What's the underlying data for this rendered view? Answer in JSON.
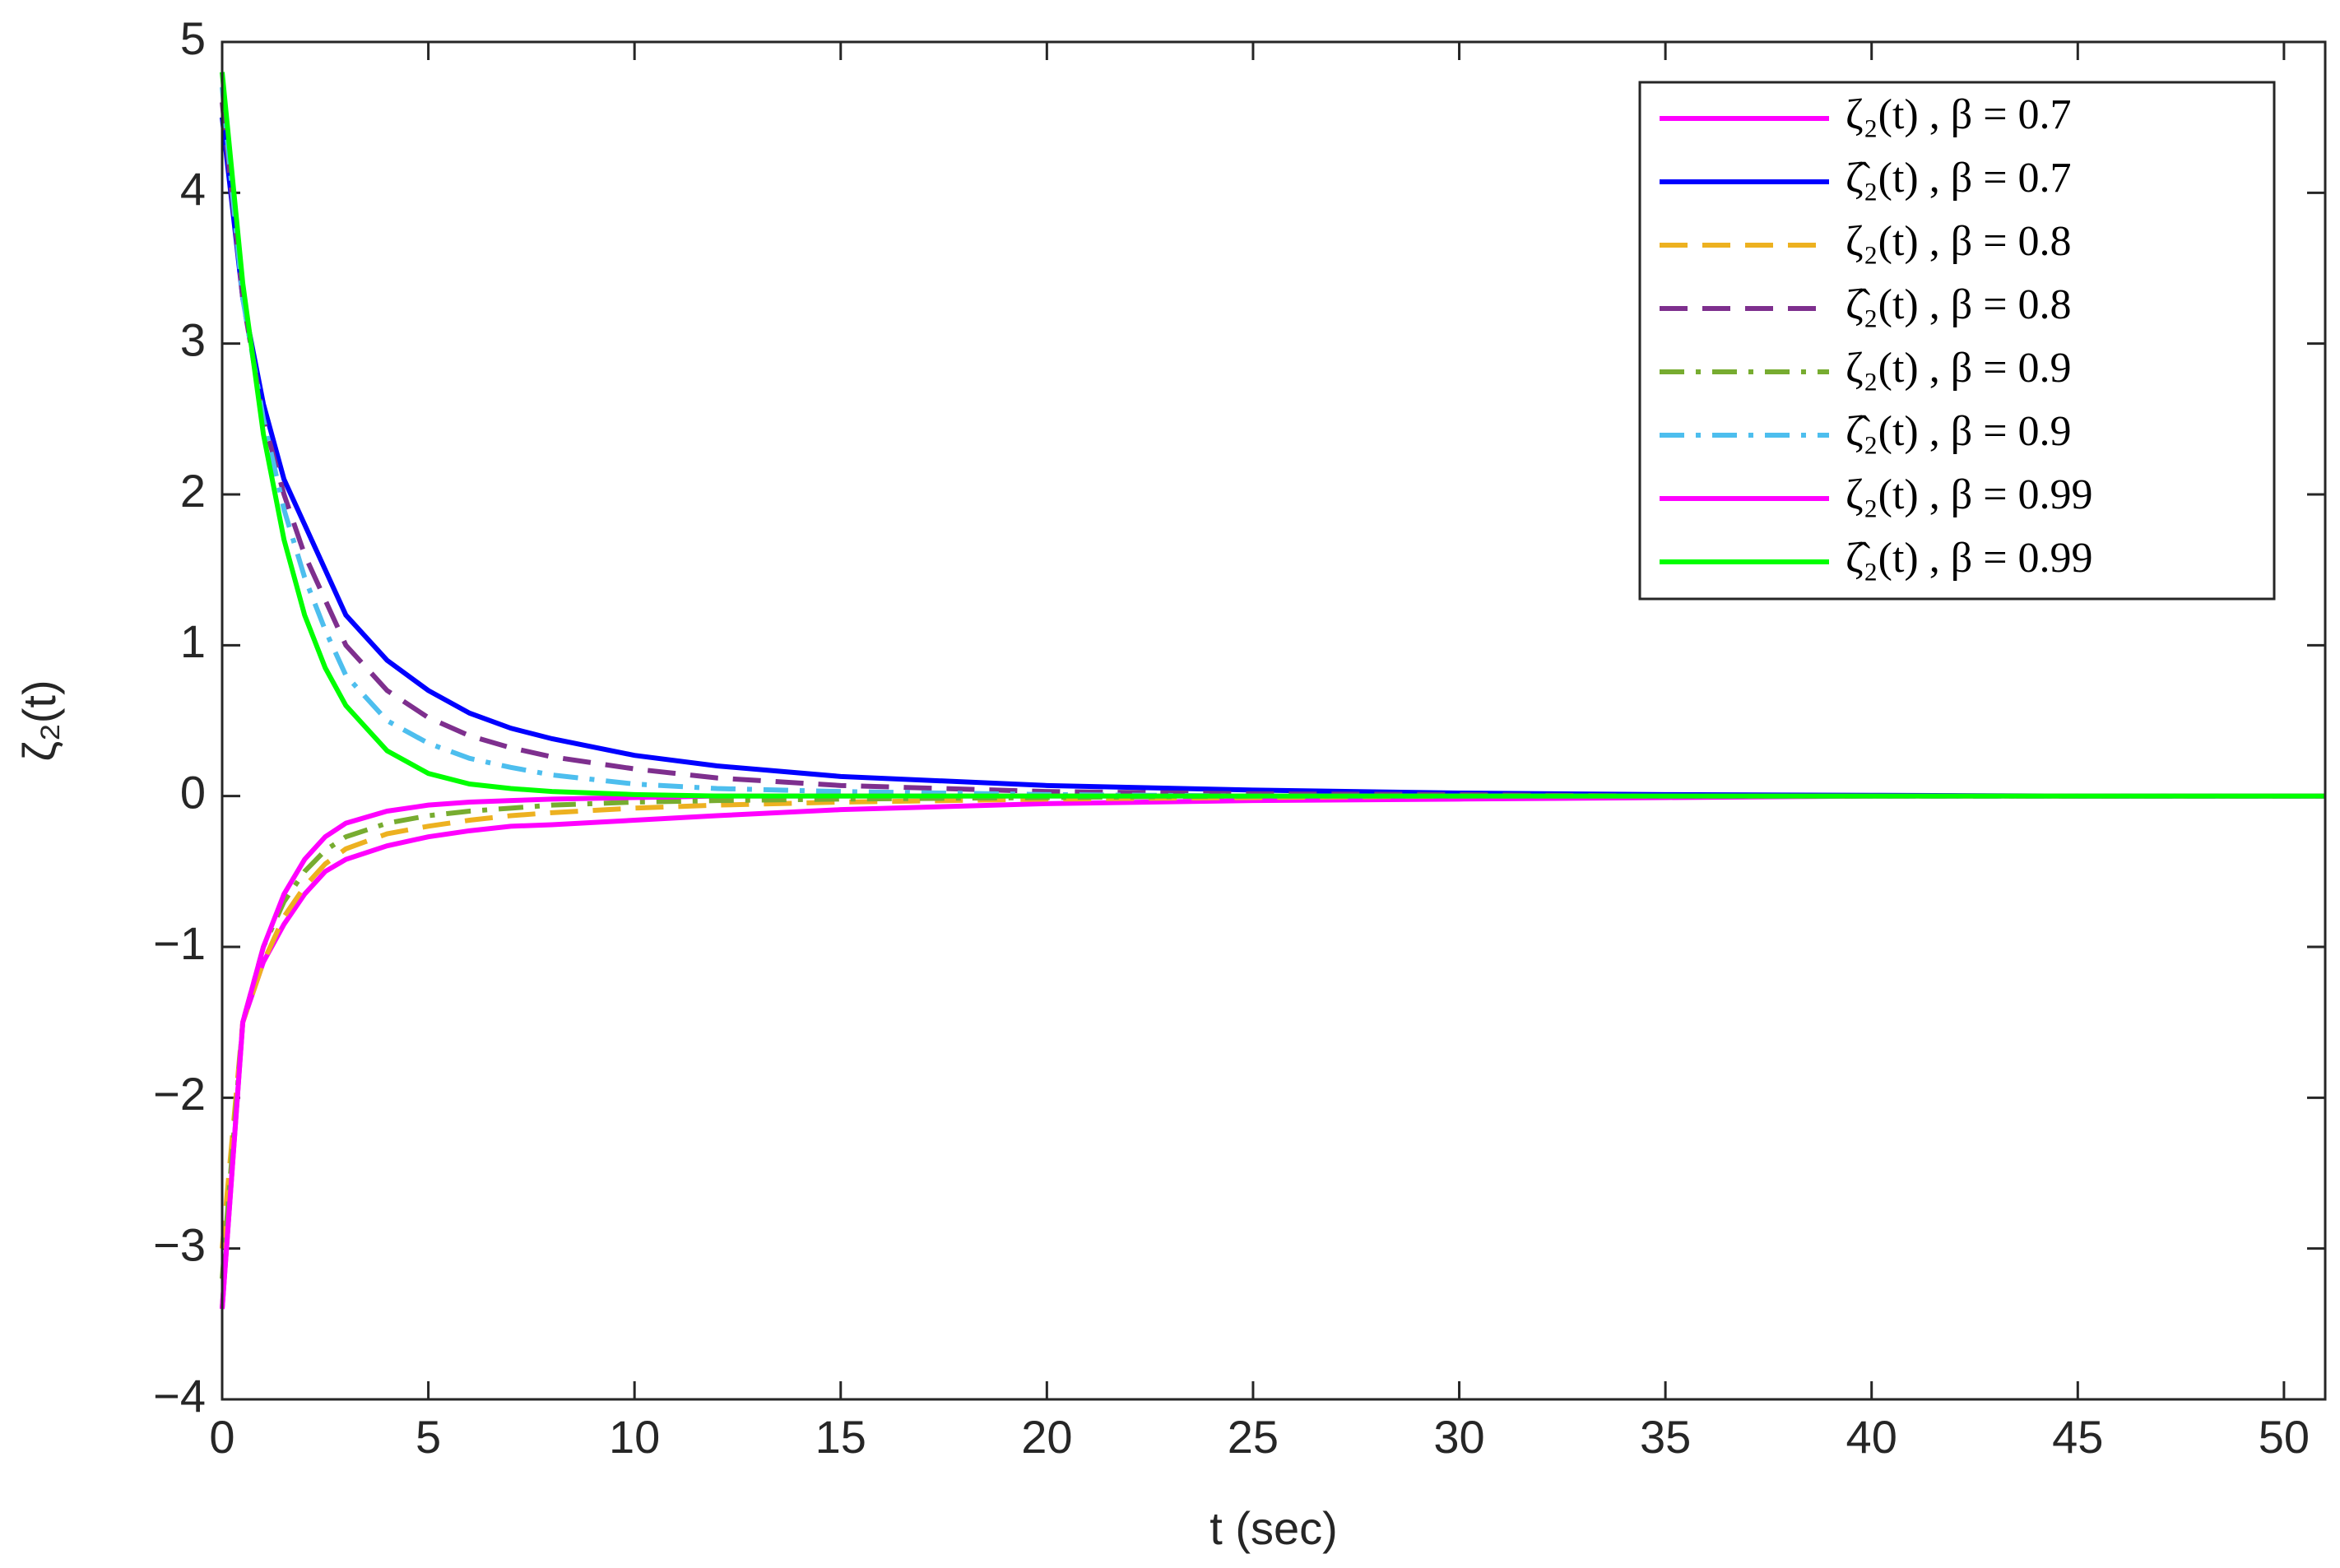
{
  "chart_data": {
    "type": "line",
    "xlabel": "t (sec)",
    "ylabel": "ζ₂(t)",
    "x": [
      0,
      0.5,
      1,
      1.5,
      2,
      2.5,
      3,
      4,
      5,
      6,
      7,
      8,
      10,
      12,
      15,
      20,
      25,
      30,
      35,
      40,
      45,
      51
    ],
    "xlim": [
      0,
      51
    ],
    "xticks": [
      0,
      5,
      10,
      15,
      20,
      25,
      30,
      35,
      40,
      45,
      50
    ],
    "ylim": [
      -4,
      5
    ],
    "yticks": [
      {
        "value": -4,
        "label": "−4"
      },
      {
        "value": -3,
        "label": "−3"
      },
      {
        "value": -2,
        "label": "−2"
      },
      {
        "value": -1,
        "label": "−1"
      },
      0,
      1,
      2,
      3,
      4,
      5
    ],
    "grid": false,
    "legend": "upper right",
    "series": [
      {
        "name": "ζ₂(t) , β = 0.7",
        "color": "#ff00ff",
        "style": "solid",
        "values": [
          -3.4,
          -1.5,
          -1.1,
          -0.85,
          -0.65,
          -0.5,
          -0.42,
          -0.33,
          -0.27,
          -0.23,
          -0.2,
          -0.19,
          -0.16,
          -0.13,
          -0.09,
          -0.05,
          -0.03,
          -0.02,
          -0.01,
          0,
          0,
          0
        ]
      },
      {
        "name": "ζ̂₂(t) , β = 0.7",
        "color": "#0000ff",
        "style": "solid",
        "values": [
          4.5,
          3.3,
          2.6,
          2.1,
          1.8,
          1.5,
          1.2,
          0.9,
          0.7,
          0.55,
          0.45,
          0.38,
          0.27,
          0.2,
          0.13,
          0.07,
          0.04,
          0.02,
          0.01,
          0.005,
          0,
          0
        ]
      },
      {
        "name": "ζ₂(t) , β = 0.8",
        "color": "#edb120",
        "style": "dashed",
        "values": [
          -3.0,
          -1.5,
          -1.1,
          -0.8,
          -0.6,
          -0.45,
          -0.35,
          -0.25,
          -0.2,
          -0.16,
          -0.13,
          -0.11,
          -0.08,
          -0.06,
          -0.04,
          -0.02,
          -0.01,
          0,
          0,
          0,
          0,
          0
        ]
      },
      {
        "name": "ζ̂₂(t) , β = 0.8",
        "color": "#7e2f8e",
        "style": "dashed",
        "values": [
          4.6,
          3.3,
          2.5,
          2.0,
          1.6,
          1.3,
          1.0,
          0.7,
          0.52,
          0.4,
          0.32,
          0.26,
          0.18,
          0.12,
          0.07,
          0.03,
          0.015,
          0.01,
          0,
          0,
          0,
          0
        ]
      },
      {
        "name": "ζ₂(t) , β = 0.9",
        "color": "#77ac30",
        "style": "dashdot",
        "values": [
          -3.2,
          -1.5,
          -1.0,
          -0.7,
          -0.5,
          -0.36,
          -0.27,
          -0.18,
          -0.13,
          -0.1,
          -0.08,
          -0.06,
          -0.04,
          -0.03,
          -0.02,
          -0.01,
          0,
          0,
          0,
          0,
          0,
          0
        ]
      },
      {
        "name": "ζ̂₂(t) , β = 0.9",
        "color": "#4dbeee",
        "style": "dashdot",
        "values": [
          4.7,
          3.3,
          2.5,
          1.9,
          1.45,
          1.1,
          0.8,
          0.5,
          0.35,
          0.25,
          0.19,
          0.14,
          0.08,
          0.05,
          0.03,
          0.01,
          0,
          0,
          0,
          0,
          0,
          0
        ]
      },
      {
        "name": "ζ₂(t) , β = 0.99",
        "color": "#ff00ff",
        "style": "solid",
        "values": [
          -3.4,
          -1.5,
          -1.0,
          -0.65,
          -0.42,
          -0.27,
          -0.18,
          -0.1,
          -0.06,
          -0.04,
          -0.03,
          -0.02,
          -0.01,
          0,
          0,
          0,
          0,
          0,
          0,
          0,
          0,
          0
        ]
      },
      {
        "name": "ζ̂₂(t) , β = 0.99",
        "color": "#00ff00",
        "style": "solid",
        "values": [
          4.8,
          3.4,
          2.4,
          1.7,
          1.2,
          0.85,
          0.6,
          0.3,
          0.15,
          0.08,
          0.05,
          0.03,
          0.01,
          0,
          0,
          0,
          0,
          0,
          0,
          0,
          0,
          0
        ]
      }
    ]
  }
}
